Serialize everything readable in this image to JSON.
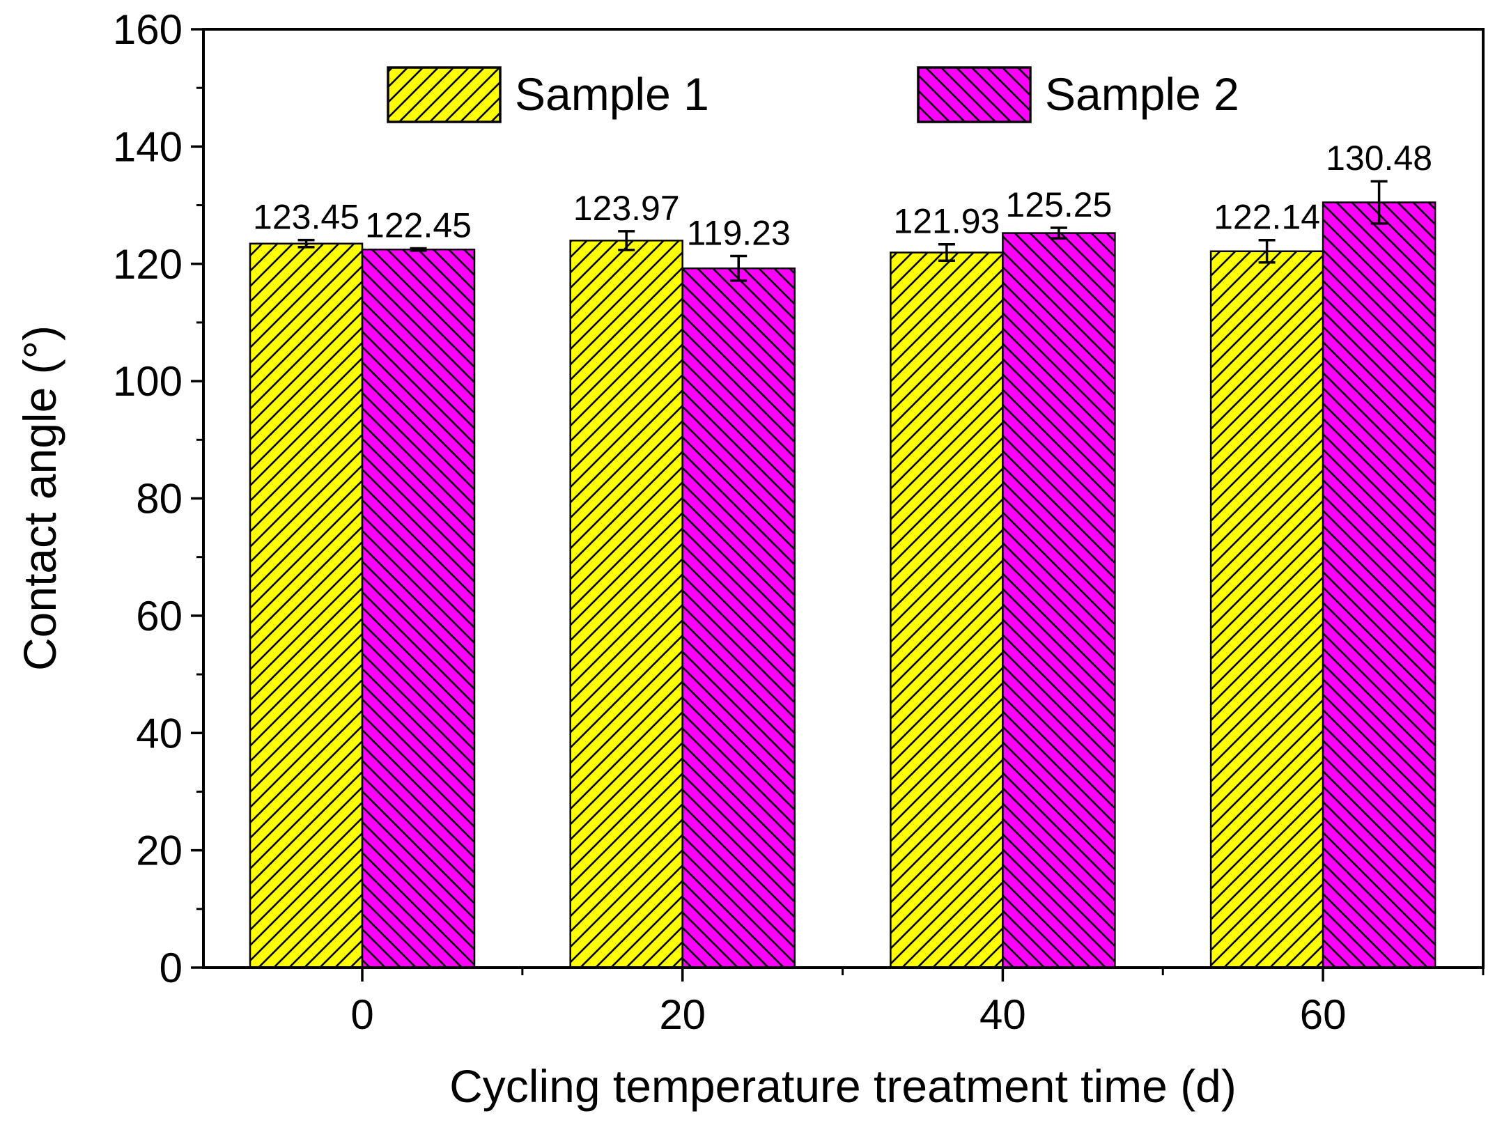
{
  "chart_data": {
    "type": "bar",
    "title": "",
    "xlabel": "Cycling temperature treatment time (d)",
    "ylabel": "Contact angle (°)",
    "categories": [
      "0",
      "20",
      "40",
      "60"
    ],
    "ylim": [
      0,
      160
    ],
    "yticks": [
      "0",
      "20",
      "40",
      "60",
      "80",
      "100",
      "120",
      "140",
      "160"
    ],
    "legend_position": "top",
    "series": [
      {
        "name": "Sample 1",
        "color": "#ffff00",
        "hatch": "forward-diagonal",
        "values": [
          123.45,
          123.97,
          121.93,
          122.14
        ],
        "labels": [
          "123.45",
          "123.97",
          "121.93",
          "122.14"
        ],
        "errors": [
          0.6,
          1.6,
          1.4,
          1.9
        ]
      },
      {
        "name": "Sample 2",
        "color": "#ff00ff",
        "hatch": "backward-diagonal",
        "values": [
          122.45,
          119.23,
          125.25,
          130.48
        ],
        "labels": [
          "122.45",
          "119.23",
          "125.25",
          "130.48"
        ],
        "errors": [
          0.2,
          2.1,
          0.9,
          3.6
        ]
      }
    ]
  }
}
